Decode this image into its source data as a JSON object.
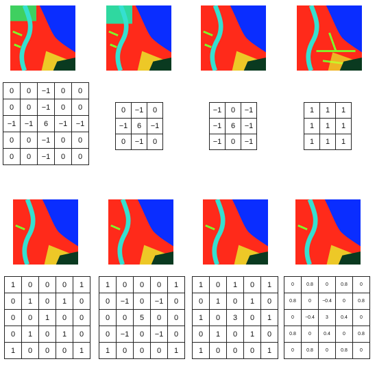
{
  "top_row": {
    "kernels": [
      {
        "rows": [
          [
            "0",
            "0",
            "−1",
            "0",
            "0"
          ],
          [
            "0",
            "0",
            "−1",
            "0",
            "0"
          ],
          [
            "−1",
            "−1",
            "6",
            "−1",
            "−1"
          ],
          [
            "0",
            "0",
            "−1",
            "0",
            "0"
          ],
          [
            "0",
            "0",
            "−1",
            "0",
            "0"
          ]
        ]
      },
      {
        "rows": [
          [
            "0",
            "−1",
            "0"
          ],
          [
            "−1",
            "6",
            "−1"
          ],
          [
            "0",
            "−1",
            "0"
          ]
        ]
      },
      {
        "rows": [
          [
            "−1",
            "0",
            "−1"
          ],
          [
            "−1",
            "6",
            "−1"
          ],
          [
            "−1",
            "0",
            "−1"
          ]
        ]
      },
      {
        "rows": [
          [
            "1",
            "1",
            "1"
          ],
          [
            "1",
            "1",
            "1"
          ],
          [
            "1",
            "1",
            "1"
          ]
        ]
      }
    ]
  },
  "bottom_row": {
    "kernels": [
      {
        "rows": [
          [
            "1",
            "0",
            "0",
            "0",
            "1"
          ],
          [
            "0",
            "1",
            "0",
            "1",
            "0"
          ],
          [
            "0",
            "0",
            "1",
            "0",
            "0"
          ],
          [
            "0",
            "1",
            "0",
            "1",
            "0"
          ],
          [
            "1",
            "0",
            "0",
            "0",
            "1"
          ]
        ]
      },
      {
        "rows": [
          [
            "1",
            "0",
            "0",
            "0",
            "1"
          ],
          [
            "0",
            "−1",
            "0",
            "−1",
            "0"
          ],
          [
            "0",
            "0",
            "5",
            "0",
            "0"
          ],
          [
            "0",
            "−1",
            "0",
            "−1",
            "0"
          ],
          [
            "1",
            "0",
            "0",
            "0",
            "1"
          ]
        ]
      },
      {
        "rows": [
          [
            "1",
            "0",
            "1",
            "0",
            "1"
          ],
          [
            "0",
            "1",
            "0",
            "1",
            "0"
          ],
          [
            "1",
            "0",
            "3",
            "0",
            "1"
          ],
          [
            "0",
            "1",
            "0",
            "1",
            "0"
          ],
          [
            "1",
            "0",
            "0",
            "0",
            "1"
          ]
        ]
      },
      {
        "rows": [
          [
            "0",
            "0.8",
            "0",
            "0.8",
            "0"
          ],
          [
            "0.8",
            "0",
            "−0.4",
            "0",
            "0.8"
          ],
          [
            "0",
            "−0.4",
            "3",
            "0.4",
            "0"
          ],
          [
            "0.8",
            "0",
            "0.4",
            "0",
            "0.8"
          ],
          [
            "0",
            "0.8",
            "0",
            "0.8",
            "0"
          ]
        ]
      }
    ]
  },
  "image_palette": {
    "land": "#ff2a1a",
    "water": "#0a2dff",
    "river": "#35e0d0",
    "vegetation": "#7dff2a",
    "wetland": "#e8f02a",
    "dark": "#0a3a20"
  }
}
